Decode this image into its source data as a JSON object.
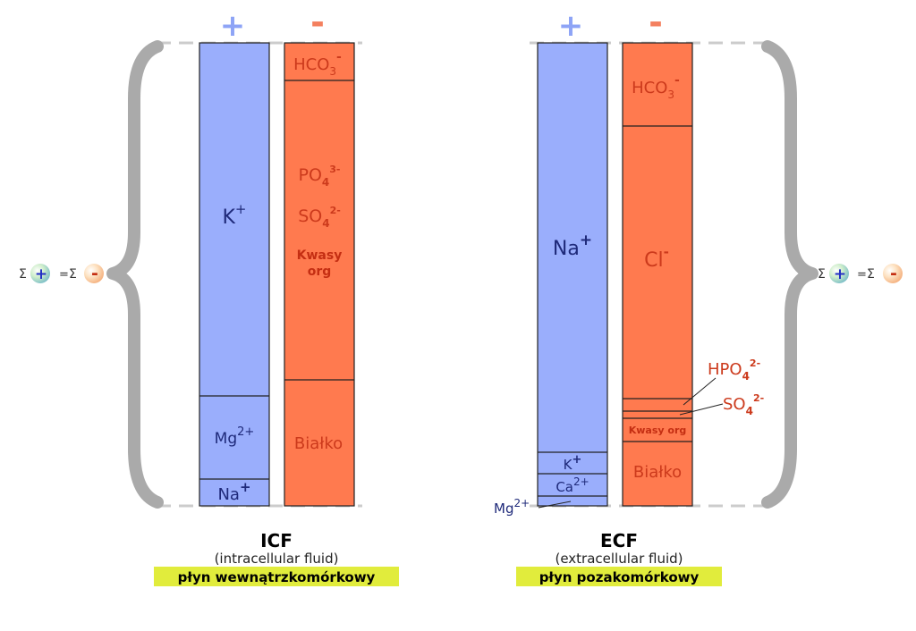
{
  "colors": {
    "cation": "#9aaefc",
    "cation_text": "#1f2a7a",
    "anion": "#ff7a4f",
    "anion_text": "#cc3a1c",
    "anion_bold_text": "#c42e12",
    "brace": "#aaaaaa",
    "dash": "#cccccc",
    "highlight": "#e1ec3c",
    "plus_sign": "#8ea4f6",
    "minus_sign": "#f4805f"
  },
  "signs": {
    "plus": "+",
    "minus": "-"
  },
  "balance": {
    "sigma": "Σ",
    "plus": "+",
    "minus": "-",
    "equals": "="
  },
  "icf": {
    "title": "ICF",
    "subtitle": "(intracellular fluid)",
    "polish": "płyn wewnątrzkomórkowy",
    "cations": [
      {
        "base": "K",
        "sup": "+"
      },
      {
        "base": "Mg",
        "sup": "2+"
      },
      {
        "base": "Na",
        "sup": "+"
      }
    ],
    "anions": [
      {
        "base": "HCO",
        "sub": "3",
        "sup": "-"
      },
      {
        "base": "PO",
        "sub": "4",
        "sup": "3-"
      },
      {
        "base": "SO",
        "sub": "4",
        "sup": "2-"
      },
      {
        "text": "Kwasy org"
      },
      {
        "text": "Białko"
      }
    ]
  },
  "ecf": {
    "title": "ECF",
    "subtitle": "(extracellular fluid)",
    "polish": "płyn pozakomórkowy",
    "cations": [
      {
        "base": "Na",
        "sup": "+"
      },
      {
        "base": "K",
        "sup": "+"
      },
      {
        "base": "Ca",
        "sup": "2+"
      },
      {
        "base": "Mg",
        "sup": "2+"
      }
    ],
    "anions": [
      {
        "base": "HCO",
        "sub": "3",
        "sup": "-"
      },
      {
        "base": "Cl",
        "sup": "-"
      },
      {
        "base": "HPO",
        "sub": "4",
        "sup": "2-"
      },
      {
        "base": "SO",
        "sub": "4",
        "sup": "2-"
      },
      {
        "text": "Kwasy org"
      },
      {
        "text": "Białko"
      }
    ]
  }
}
